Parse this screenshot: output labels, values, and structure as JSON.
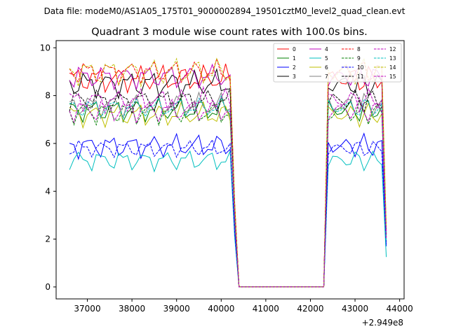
{
  "chart_data": {
    "type": "line",
    "supertitle": "Data file: modeM0/AS1A05_175T01_9000002894_19501cztM0_level2_quad_clean.evt",
    "title": "Quadrant 3 module wise count rates with 100.0s bins.",
    "xlabel": "",
    "ylabel": "",
    "x_offset_label": "+2.949e8",
    "xlim": [
      36300,
      44100
    ],
    "ylim": [
      -0.5,
      10.3
    ],
    "x_ticks": [
      37000,
      38000,
      39000,
      40000,
      41000,
      42000,
      43000,
      44000
    ],
    "x_tick_labels": [
      "37000",
      "38000",
      "39000",
      "40000",
      "41000",
      "42000",
      "43000",
      "44000"
    ],
    "y_ticks": [
      0,
      2,
      4,
      6,
      8,
      10
    ],
    "y_tick_labels": [
      "0",
      "2",
      "4",
      "6",
      "8",
      "10"
    ],
    "x_start": 36600,
    "bin": 100,
    "legend_position": "top-right",
    "series": [
      {
        "name": "0",
        "color": "#ff0000",
        "style": "solid",
        "base": 8.7,
        "amp": 0.4,
        "phase": 0.0
      },
      {
        "name": "1",
        "color": "#008000",
        "style": "solid",
        "base": 7.4,
        "amp": 0.35,
        "phase": 1.1
      },
      {
        "name": "2",
        "color": "#0000ff",
        "style": "solid",
        "base": 5.9,
        "amp": 0.35,
        "phase": 2.3
      },
      {
        "name": "3",
        "color": "#000000",
        "style": "solid",
        "base": 8.5,
        "amp": 0.4,
        "phase": 3.1
      },
      {
        "name": "4",
        "color": "#bf00bf",
        "style": "solid",
        "base": 8.8,
        "amp": 0.35,
        "phase": 4.2
      },
      {
        "name": "5",
        "color": "#00bfbf",
        "style": "solid",
        "base": 5.3,
        "amp": 0.3,
        "phase": 5.0
      },
      {
        "name": "6",
        "color": "#bfbf00",
        "style": "solid",
        "base": 7.2,
        "amp": 0.35,
        "phase": 0.6
      },
      {
        "name": "7",
        "color": "#808080",
        "style": "solid",
        "base": 7.6,
        "amp": 0.35,
        "phase": 1.7
      },
      {
        "name": "8",
        "color": "#ff0000",
        "style": "dashed",
        "base": 9.0,
        "amp": 0.35,
        "phase": 2.8
      },
      {
        "name": "9",
        "color": "#008000",
        "style": "dashed",
        "base": 7.3,
        "amp": 0.35,
        "phase": 3.6
      },
      {
        "name": "10",
        "color": "#0000ff",
        "style": "dashed",
        "base": 5.8,
        "amp": 0.25,
        "phase": 4.6
      },
      {
        "name": "11",
        "color": "#000000",
        "style": "dashed",
        "base": 7.8,
        "amp": 0.35,
        "phase": 5.5
      },
      {
        "name": "12",
        "color": "#bf00bf",
        "style": "dashed",
        "base": 7.8,
        "amp": 0.35,
        "phase": 0.3
      },
      {
        "name": "13",
        "color": "#00bfbf",
        "style": "dashed",
        "base": 7.5,
        "amp": 0.3,
        "phase": 1.4
      },
      {
        "name": "14",
        "color": "#bfbf00",
        "style": "dashed",
        "base": 9.0,
        "amp": 0.4,
        "phase": 2.5
      },
      {
        "name": "15",
        "color": "#bf00bf",
        "style": "dashed",
        "base": 7.4,
        "amp": 0.35,
        "phase": 3.9
      }
    ],
    "gap": {
      "zero_from": 40400,
      "zero_to": 42300,
      "data_end": 43700
    },
    "end_values": [
      1.9,
      2.2,
      1.7,
      2.1,
      2.3,
      1.25,
      2.2,
      2.0,
      2.4,
      2.1,
      1.8,
      2.2,
      2.3,
      1.9,
      2.5,
      2.0
    ]
  }
}
